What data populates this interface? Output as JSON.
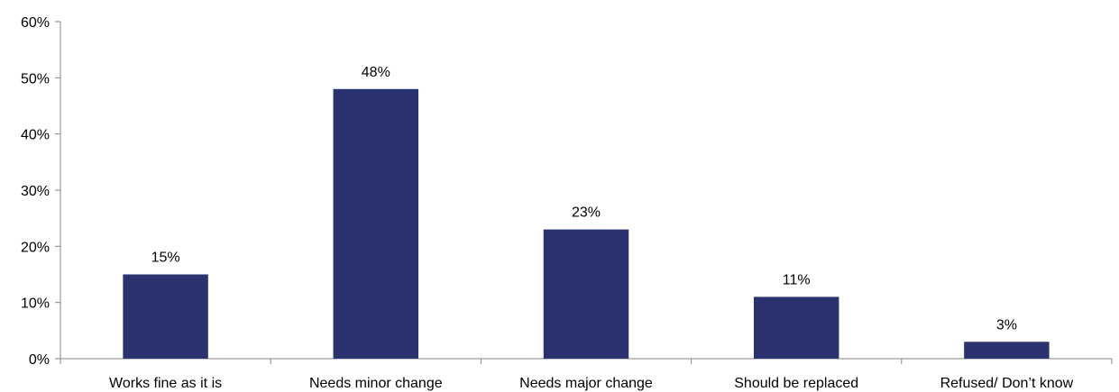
{
  "chart_data": {
    "type": "bar",
    "categories": [
      "Works fine as it is",
      "Needs minor change",
      "Needs major change",
      "Should be replaced",
      "Refused/ Don’t know"
    ],
    "values": [
      15,
      48,
      23,
      11,
      3
    ],
    "data_labels": [
      "15%",
      "48%",
      "23%",
      "11%",
      "3%"
    ],
    "y_ticks": [
      0,
      10,
      20,
      30,
      40,
      50,
      60
    ],
    "y_tick_labels": [
      "0%",
      "10%",
      "20%",
      "30%",
      "40%",
      "50%",
      "60%"
    ],
    "ylim": [
      0,
      60
    ],
    "bar_color": "#2b3270",
    "grid": false,
    "legend": "none"
  }
}
